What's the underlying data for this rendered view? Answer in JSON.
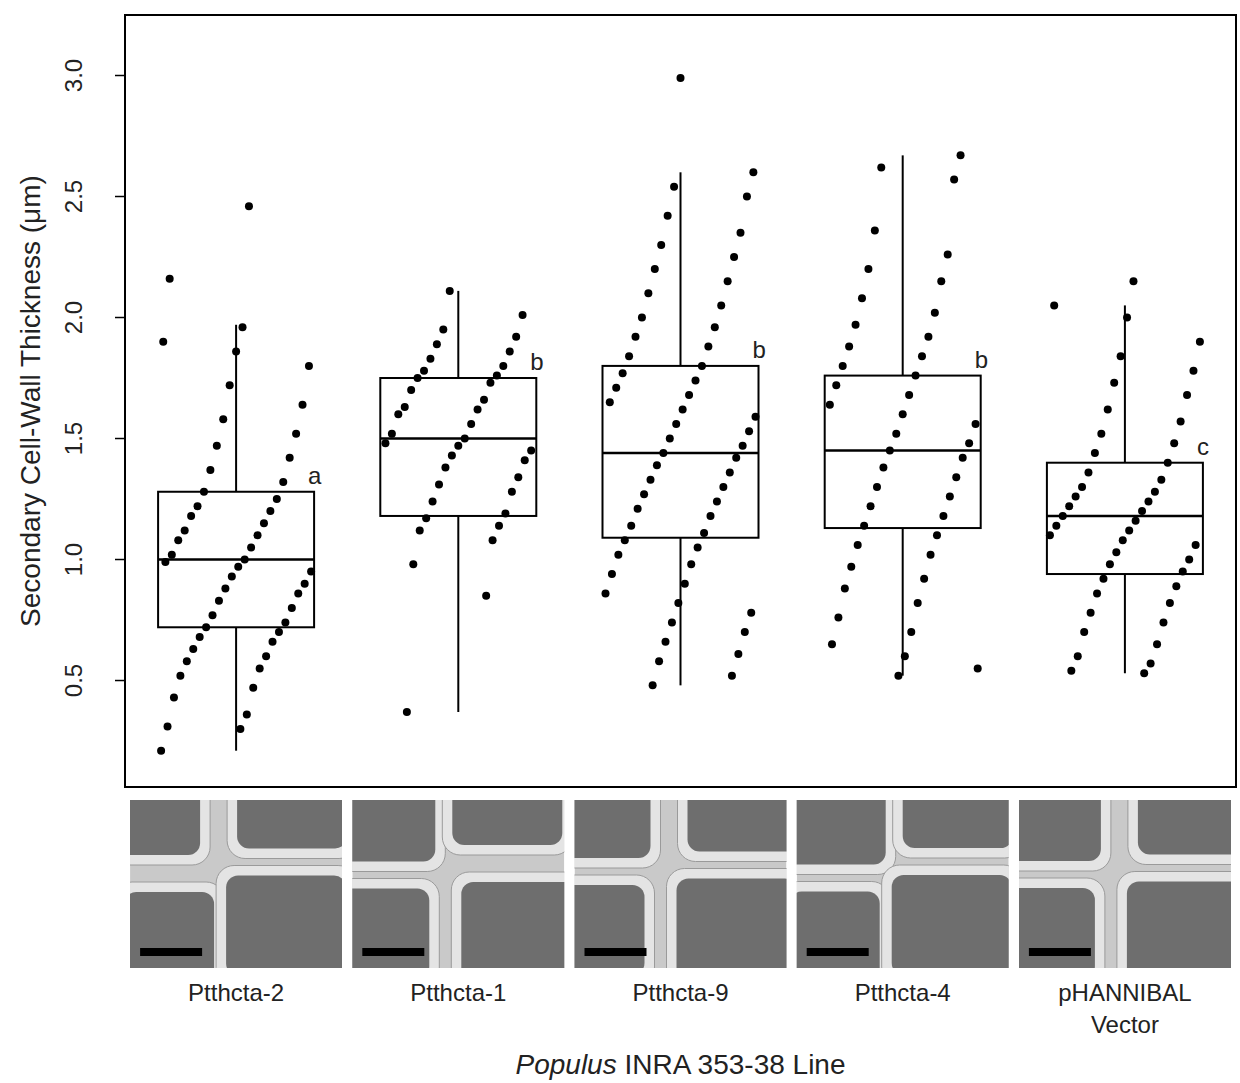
{
  "chart_data": {
    "type": "box",
    "y_label": "Secondary Cell-Wall Thickness (μm)",
    "x_label": "Populus INRA 353-38 Line",
    "categories": [
      "Ptthcta-2",
      "Ptthcta-1",
      "Ptthcta-9",
      "Ptthcta-4",
      "pHANNIBAL Vector"
    ],
    "ylim": [
      0.06,
      3.25
    ],
    "yticks": [
      0.5,
      {
        "value": 1,
        "label": "1.0"
      },
      1.5,
      {
        "value": 2,
        "label": "2.0"
      },
      2.5,
      {
        "value": 3,
        "label": "3.0"
      }
    ],
    "grid": false,
    "color": "#000000",
    "annotations": [
      "a",
      "b",
      "b",
      "b",
      "c"
    ],
    "boxes": [
      {
        "low": 0.21,
        "q1": 0.72,
        "median": 1.0,
        "q3": 1.28,
        "high": 1.97
      },
      {
        "low": 0.37,
        "q1": 1.18,
        "median": 1.5,
        "q3": 1.75,
        "high": 2.11
      },
      {
        "low": 0.48,
        "q1": 1.09,
        "median": 1.44,
        "q3": 1.8,
        "high": 2.6
      },
      {
        "low": 0.52,
        "q1": 1.13,
        "median": 1.45,
        "q3": 1.76,
        "high": 2.67
      },
      {
        "low": 0.53,
        "q1": 0.94,
        "median": 1.18,
        "q3": 1.4,
        "high": 2.05
      }
    ],
    "points": [
      [
        0.21,
        0.3,
        0.31,
        0.36,
        0.43,
        0.47,
        0.52,
        0.55,
        0.58,
        0.6,
        0.63,
        0.66,
        0.68,
        0.7,
        0.72,
        0.74,
        0.77,
        0.8,
        0.83,
        0.86,
        0.88,
        0.9,
        0.93,
        0.95,
        0.97,
        0.99,
        1.0,
        1.02,
        1.05,
        1.08,
        1.1,
        1.12,
        1.15,
        1.18,
        1.2,
        1.22,
        1.25,
        1.28,
        1.32,
        1.37,
        1.42,
        1.47,
        1.52,
        1.58,
        1.64,
        1.72,
        1.8,
        1.86,
        1.9,
        1.96,
        2.16,
        2.46
      ],
      [
        0.37,
        0.85,
        0.98,
        1.08,
        1.12,
        1.14,
        1.17,
        1.19,
        1.24,
        1.28,
        1.31,
        1.34,
        1.38,
        1.41,
        1.43,
        1.45,
        1.47,
        1.48,
        1.5,
        1.52,
        1.56,
        1.6,
        1.62,
        1.63,
        1.66,
        1.7,
        1.73,
        1.75,
        1.76,
        1.78,
        1.8,
        1.83,
        1.86,
        1.89,
        1.92,
        1.95,
        2.01,
        2.11
      ],
      [
        0.48,
        0.52,
        0.58,
        0.61,
        0.66,
        0.7,
        0.74,
        0.78,
        0.82,
        0.86,
        0.9,
        0.94,
        0.98,
        1.02,
        1.05,
        1.08,
        1.11,
        1.14,
        1.18,
        1.21,
        1.24,
        1.27,
        1.3,
        1.33,
        1.36,
        1.39,
        1.42,
        1.44,
        1.47,
        1.5,
        1.53,
        1.56,
        1.59,
        1.62,
        1.65,
        1.68,
        1.71,
        1.74,
        1.77,
        1.8,
        1.84,
        1.88,
        1.92,
        1.96,
        2.0,
        2.05,
        2.1,
        2.15,
        2.2,
        2.25,
        2.3,
        2.35,
        2.42,
        2.5,
        2.54,
        2.6,
        2.99
      ],
      [
        0.52,
        0.55,
        0.6,
        0.65,
        0.7,
        0.76,
        0.82,
        0.88,
        0.92,
        0.97,
        1.02,
        1.06,
        1.1,
        1.14,
        1.18,
        1.22,
        1.26,
        1.3,
        1.34,
        1.38,
        1.42,
        1.45,
        1.48,
        1.52,
        1.56,
        1.6,
        1.64,
        1.68,
        1.72,
        1.76,
        1.8,
        1.84,
        1.88,
        1.92,
        1.97,
        2.02,
        2.08,
        2.15,
        2.2,
        2.26,
        2.36,
        2.57,
        2.62,
        2.67
      ],
      [
        0.53,
        0.54,
        0.57,
        0.6,
        0.65,
        0.7,
        0.74,
        0.78,
        0.82,
        0.86,
        0.89,
        0.92,
        0.95,
        0.98,
        1.0,
        1.03,
        1.06,
        1.08,
        1.1,
        1.12,
        1.14,
        1.16,
        1.18,
        1.2,
        1.22,
        1.24,
        1.26,
        1.28,
        1.3,
        1.33,
        1.36,
        1.4,
        1.44,
        1.48,
        1.52,
        1.57,
        1.62,
        1.68,
        1.73,
        1.78,
        1.84,
        1.9,
        2.0,
        2.05,
        2.15
      ]
    ]
  }
}
